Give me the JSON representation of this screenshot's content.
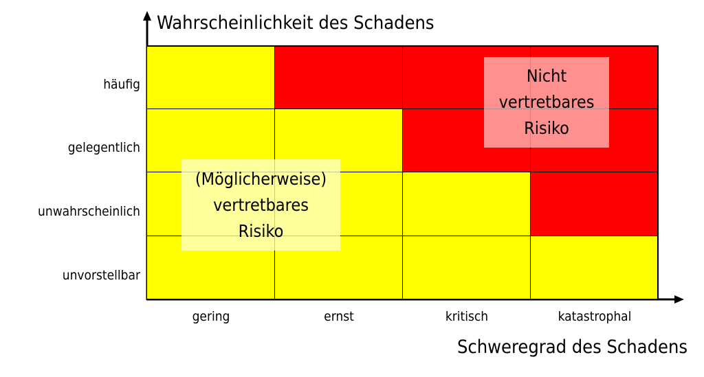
{
  "axis": {
    "y_title": "Wahrscheinlichkeit  des Schadens",
    "x_title": "Schweregrad des Schadens"
  },
  "rows": [
    "häufig",
    "gelegentlich",
    "unwahrscheinlich",
    "unvorstellbar"
  ],
  "columns": [
    "gering",
    "ernst",
    "kritisch",
    "katastrophal"
  ],
  "matrix": [
    [
      "yellow",
      "red",
      "red",
      "red"
    ],
    [
      "yellow",
      "yellow",
      "red",
      "red"
    ],
    [
      "yellow",
      "yellow",
      "yellow",
      "red"
    ],
    [
      "yellow",
      "yellow",
      "yellow",
      "yellow"
    ]
  ],
  "colors": {
    "yellow": "#ffff00",
    "red": "#ff0000"
  },
  "regions": {
    "acceptable": [
      "(Möglicherweise)",
      "vertretbares",
      "Risiko"
    ],
    "unacceptable": [
      "Nicht",
      "vertretbares",
      "Risiko"
    ]
  }
}
